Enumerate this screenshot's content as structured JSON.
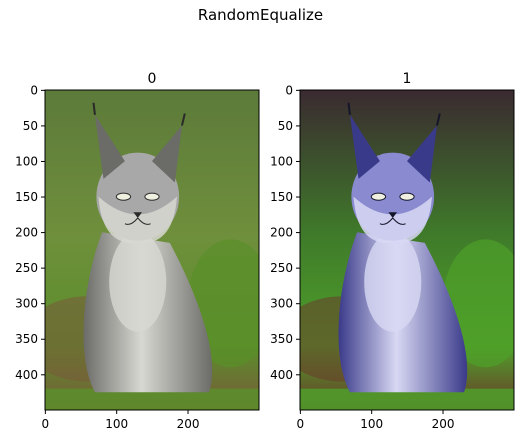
{
  "chart_data": {
    "type": "image",
    "title": "RandomEqualize",
    "panels": [
      {
        "title": "0",
        "xticks": [
          0,
          100,
          200
        ],
        "yticks": [
          0,
          50,
          100,
          150,
          200,
          250,
          300,
          350,
          400
        ],
        "xlim": [
          -0.5,
          299.5
        ],
        "ylim": [
          449.5,
          -0.5
        ],
        "palette": {
          "bg_top": "#5c7a3a",
          "bg_mid": "#6f8f3c",
          "grass": "#5a8f2a",
          "ground": "#7a5a3a",
          "fur": "#a8a8a8",
          "fur_light": "#d8d8d2",
          "fur_dark": "#6b6b68",
          "ear_tip": "#2a2a2a"
        }
      },
      {
        "title": "1",
        "xticks": [
          0,
          100,
          200
        ],
        "yticks": [
          0,
          50,
          100,
          150,
          200,
          250,
          300,
          350,
          400
        ],
        "xlim": [
          -0.5,
          299.5
        ],
        "ylim": [
          449.5,
          -0.5
        ],
        "palette": {
          "bg_top": "#3a2a30",
          "bg_mid": "#3f7a2a",
          "grass": "#4fa02a",
          "ground": "#6a3a2a",
          "fur": "#8a8ad0",
          "fur_light": "#d8d8f4",
          "fur_dark": "#3a3a8a",
          "ear_tip": "#15152a"
        }
      }
    ]
  }
}
